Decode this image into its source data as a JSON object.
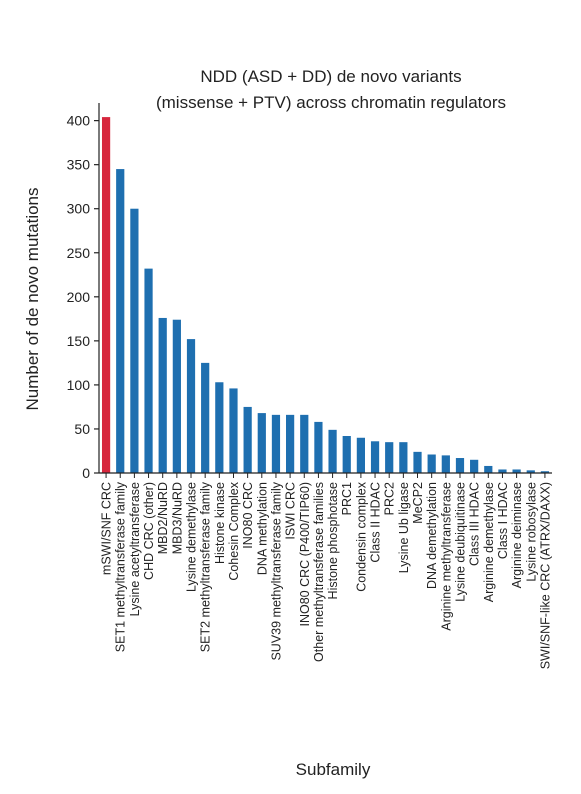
{
  "chart_data": {
    "type": "bar",
    "title_lines": [
      "NDD (ASD + DD) de novo variants",
      "(missense + PTV) across chromatin regulators"
    ],
    "xlabel": "Subfamily",
    "ylabel": "Number of de novo mutations",
    "ylim": [
      0,
      420
    ],
    "yticks": [
      0,
      50,
      100,
      150,
      200,
      250,
      300,
      350,
      400
    ],
    "grid": false,
    "legend": "none",
    "colors": {
      "highlight": "#d7263d",
      "default": "#1e6fb0"
    },
    "highlight_index": 0,
    "categories": [
      "mSWI/SNF CRC",
      "SET1 methyltransferase family",
      "Lysine acetyltransferase",
      "CHD CRC (other)",
      "MBD2/NuRD",
      "MBD3/NuRD",
      "Lysine demethylase",
      "SET2 methyltransferase family",
      "Histone kinase",
      "Cohesin Complex",
      "INO80 CRC",
      "DNA methylation",
      "SUV39 methyltransferase family",
      "ISWI CRC",
      "INO80 CRC (P400/TIP60)",
      "Other methyltransferase families",
      "Histone phosphotase",
      "PRC1",
      "Condensin complex",
      "Class II HDAC",
      "PRC2",
      "Lysine Ub ligase",
      "MeCP2",
      "DNA demethylation",
      "Arginine methyltransferase",
      "Lysine deubiquitinase",
      "Class III HDAC",
      "Arginine demethylase",
      "Class I HDAC",
      "Arginine deiminase",
      "Lysine robosylase",
      "SWI/SNF-like CRC (ATRX/DAXX)"
    ],
    "values": [
      404,
      345,
      300,
      232,
      176,
      174,
      152,
      125,
      103,
      96,
      75,
      68,
      66,
      66,
      66,
      58,
      49,
      42,
      40,
      36,
      35,
      35,
      24,
      21,
      20,
      17,
      15,
      8,
      4,
      4,
      3,
      2
    ]
  }
}
